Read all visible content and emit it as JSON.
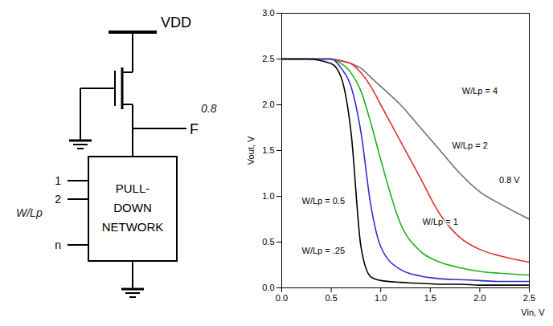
{
  "chart_data": {
    "type": "line",
    "x_label": "Vin, V",
    "y_label": "Vout, V",
    "xlim": [
      0,
      2.5
    ],
    "xticks": [
      {
        "value": 0,
        "label": "0.0"
      },
      {
        "value": 0.5,
        "label": "0.5"
      },
      {
        "value": 1,
        "label": "1.0"
      },
      {
        "value": 1.5,
        "label": "1.5"
      },
      {
        "value": 2,
        "label": "2.0"
      },
      {
        "value": 2.5,
        "label": "2.5"
      }
    ],
    "ylim": [
      0,
      3
    ],
    "yticks": [
      {
        "value": 0,
        "label": "0.0"
      },
      {
        "value": 0.5,
        "label": "0.5"
      },
      {
        "value": 1,
        "label": "1.0"
      },
      {
        "value": 1.5,
        "label": "1.5"
      },
      {
        "value": 2,
        "label": "2.0"
      },
      {
        "value": 2.5,
        "label": "2.5"
      },
      {
        "value": 3,
        "label": "3.0"
      }
    ],
    "grid": false,
    "x": [
      0,
      0.25,
      0.5,
      0.6,
      0.7,
      0.8,
      0.9,
      1.0,
      1.2,
      1.4,
      1.6,
      1.8,
      2.0,
      2.2,
      2.5
    ],
    "series": [
      {
        "name": "W/Lp = 4",
        "color": "#707070",
        "values": [
          2.5,
          2.5,
          2.5,
          2.48,
          2.45,
          2.4,
          2.3,
          2.2,
          2.0,
          1.75,
          1.5,
          1.25,
          1.05,
          0.92,
          0.75
        ]
      },
      {
        "name": "W/Lp = 2",
        "color": "#e03030",
        "values": [
          2.5,
          2.5,
          2.5,
          2.48,
          2.45,
          2.35,
          2.2,
          2.0,
          1.6,
          1.2,
          0.8,
          0.55,
          0.42,
          0.35,
          0.28
        ]
      },
      {
        "name": "W/Lp = 1",
        "color": "#20b020",
        "values": [
          2.5,
          2.5,
          2.5,
          2.45,
          2.35,
          2.15,
          1.8,
          1.4,
          0.7,
          0.4,
          0.28,
          0.22,
          0.18,
          0.16,
          0.14
        ]
      },
      {
        "name": "W/Lp = 0.5",
        "color": "#3030d0",
        "values": [
          2.5,
          2.5,
          2.5,
          2.4,
          2.2,
          1.7,
          0.9,
          0.45,
          0.2,
          0.13,
          0.1,
          0.09,
          0.08,
          0.07,
          0.07
        ]
      },
      {
        "name": "W/Lp = .25",
        "color": "#000000",
        "values": [
          2.5,
          2.5,
          2.45,
          2.3,
          1.7,
          0.45,
          0.12,
          0.08,
          0.06,
          0.05,
          0.04,
          0.04,
          0.03,
          0.03,
          0.03
        ]
      }
    ],
    "annotations": [
      {
        "text": "W/Lp = 4",
        "x": 2.0,
        "y": 2.15
      },
      {
        "text": "W/Lp = 2",
        "x": 1.9,
        "y": 1.55
      },
      {
        "text": "W/Lp = 1",
        "x": 1.6,
        "y": 0.72
      },
      {
        "text": "W/Lp = 0.5",
        "x": 0.42,
        "y": 0.95
      },
      {
        "text": "W/Lp = .25",
        "x": 0.42,
        "y": 0.4
      },
      {
        "text": "0.8 V",
        "x": 2.3,
        "y": 1.18
      }
    ]
  },
  "diagram": {
    "supply": "VDD",
    "output": "F",
    "block": [
      "PULL-",
      "DOWN",
      "NETWORK"
    ],
    "inputs": [
      "1",
      "2",
      "n"
    ],
    "annotations": [
      "0.8",
      "W/Lp"
    ]
  }
}
